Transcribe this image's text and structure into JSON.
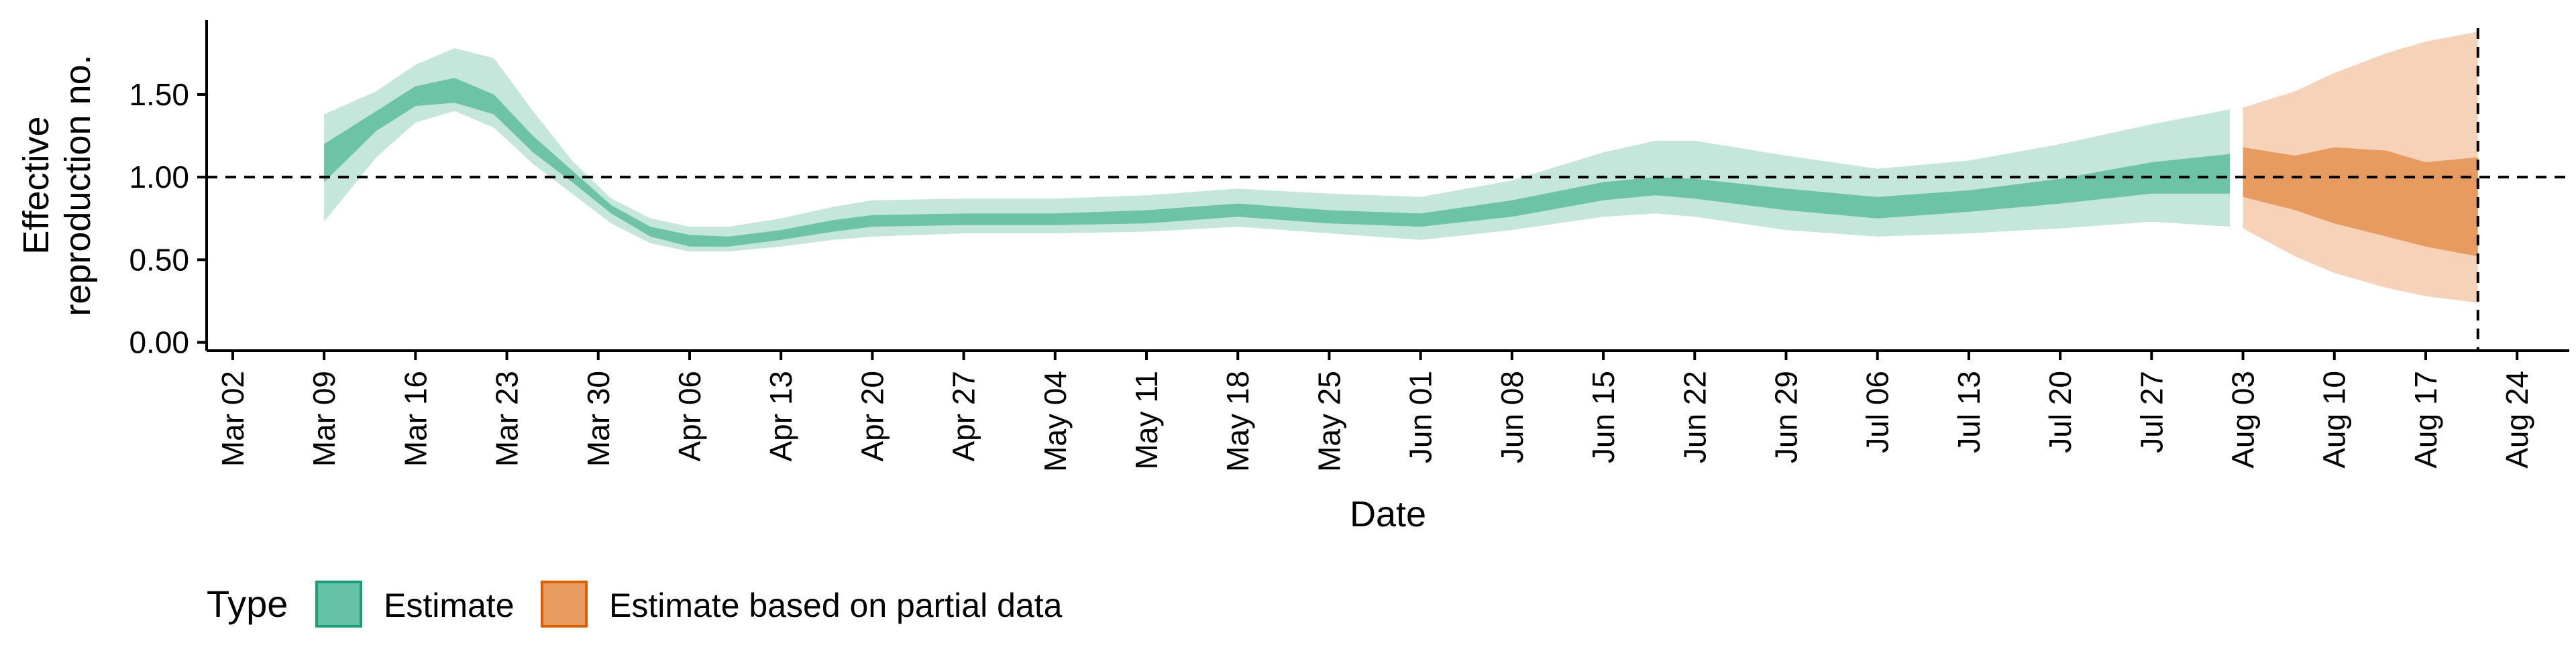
{
  "chart_data": {
    "type": "area",
    "title": "",
    "xlabel": "Date",
    "ylabel": "Effective reproduction no.",
    "ylabel_lines": [
      "Effective",
      "reproduction no."
    ],
    "xlim": [
      "2020-02-29",
      "2020-08-28"
    ],
    "ylim": [
      -0.05,
      1.95
    ],
    "x_tick_labels": [
      "Mar 02",
      "Mar 09",
      "Mar 16",
      "Mar 23",
      "Mar 30",
      "Apr 06",
      "Apr 13",
      "Apr 20",
      "Apr 27",
      "May 04",
      "May 11",
      "May 18",
      "May 25",
      "Jun 01",
      "Jun 08",
      "Jun 15",
      "Jun 22",
      "Jun 29",
      "Jul 06",
      "Jul 13",
      "Jul 20",
      "Jul 27",
      "Aug 03",
      "Aug 10",
      "Aug 17",
      "Aug 24"
    ],
    "x_tick_dates": [
      "2020-03-02",
      "2020-03-09",
      "2020-03-16",
      "2020-03-23",
      "2020-03-30",
      "2020-04-06",
      "2020-04-13",
      "2020-04-20",
      "2020-04-27",
      "2020-05-04",
      "2020-05-11",
      "2020-05-18",
      "2020-05-25",
      "2020-06-01",
      "2020-06-08",
      "2020-06-15",
      "2020-06-22",
      "2020-06-29",
      "2020-07-06",
      "2020-07-13",
      "2020-07-20",
      "2020-07-27",
      "2020-08-03",
      "2020-08-10",
      "2020-08-17",
      "2020-08-24"
    ],
    "y_ticks": [
      0,
      0.5,
      1.0,
      1.5
    ],
    "y_tick_labels": [
      "0.00",
      "0.50",
      "1.00",
      "1.50"
    ],
    "reference_hline": 1.0,
    "reference_vline": "2020-08-21",
    "grid": false,
    "legend": {
      "title": "Type",
      "position": "bottom-left",
      "entries": [
        {
          "label": "Estimate",
          "fill": "#66c2a5",
          "border": "#1b9e77"
        },
        {
          "label": "Estimate based on partial data",
          "fill": "#e89b5e",
          "border": "#d95f02"
        }
      ]
    },
    "colors": {
      "estimate_outer": "#c5e6db",
      "estimate_inner": "#6cc3a6",
      "partial_outer": "#f6d3b8",
      "partial_inner": "#e89b5e"
    },
    "series": [
      {
        "name": "Estimate",
        "points": [
          {
            "x": "2020-03-09",
            "lo90": 0.73,
            "lo50": 0.97,
            "hi50": 1.2,
            "hi90": 1.38
          },
          {
            "x": "2020-03-13",
            "lo90": 1.12,
            "lo50": 1.28,
            "hi50": 1.4,
            "hi90": 1.52
          },
          {
            "x": "2020-03-16",
            "lo90": 1.33,
            "lo50": 1.43,
            "hi50": 1.55,
            "hi90": 1.68
          },
          {
            "x": "2020-03-19",
            "lo90": 1.4,
            "lo50": 1.45,
            "hi50": 1.6,
            "hi90": 1.78
          },
          {
            "x": "2020-03-22",
            "lo90": 1.3,
            "lo50": 1.38,
            "hi50": 1.5,
            "hi90": 1.72
          },
          {
            "x": "2020-03-25",
            "lo90": 1.08,
            "lo50": 1.15,
            "hi50": 1.25,
            "hi90": 1.4
          },
          {
            "x": "2020-03-28",
            "lo90": 0.9,
            "lo50": 0.97,
            "hi50": 1.04,
            "hi90": 1.1
          },
          {
            "x": "2020-03-31",
            "lo90": 0.72,
            "lo50": 0.78,
            "hi50": 0.83,
            "hi90": 0.87
          },
          {
            "x": "2020-04-03",
            "lo90": 0.6,
            "lo50": 0.64,
            "hi50": 0.7,
            "hi90": 0.75
          },
          {
            "x": "2020-04-06",
            "lo90": 0.55,
            "lo50": 0.58,
            "hi50": 0.65,
            "hi90": 0.7
          },
          {
            "x": "2020-04-09",
            "lo90": 0.55,
            "lo50": 0.58,
            "hi50": 0.64,
            "hi90": 0.7
          },
          {
            "x": "2020-04-13",
            "lo90": 0.58,
            "lo50": 0.62,
            "hi50": 0.68,
            "hi90": 0.75
          },
          {
            "x": "2020-04-17",
            "lo90": 0.62,
            "lo50": 0.67,
            "hi50": 0.74,
            "hi90": 0.82
          },
          {
            "x": "2020-04-20",
            "lo90": 0.64,
            "lo50": 0.7,
            "hi50": 0.77,
            "hi90": 0.86
          },
          {
            "x": "2020-04-27",
            "lo90": 0.66,
            "lo50": 0.71,
            "hi50": 0.78,
            "hi90": 0.87
          },
          {
            "x": "2020-05-04",
            "lo90": 0.66,
            "lo50": 0.71,
            "hi50": 0.78,
            "hi90": 0.87
          },
          {
            "x": "2020-05-11",
            "lo90": 0.67,
            "lo50": 0.72,
            "hi50": 0.8,
            "hi90": 0.89
          },
          {
            "x": "2020-05-18",
            "lo90": 0.7,
            "lo50": 0.76,
            "hi50": 0.84,
            "hi90": 0.93
          },
          {
            "x": "2020-05-25",
            "lo90": 0.66,
            "lo50": 0.72,
            "hi50": 0.8,
            "hi90": 0.9
          },
          {
            "x": "2020-06-01",
            "lo90": 0.62,
            "lo50": 0.7,
            "hi50": 0.78,
            "hi90": 0.88
          },
          {
            "x": "2020-06-08",
            "lo90": 0.68,
            "lo50": 0.76,
            "hi50": 0.86,
            "hi90": 0.98
          },
          {
            "x": "2020-06-15",
            "lo90": 0.76,
            "lo50": 0.86,
            "hi50": 0.97,
            "hi90": 1.15
          },
          {
            "x": "2020-06-19",
            "lo90": 0.78,
            "lo50": 0.89,
            "hi50": 1.0,
            "hi90": 1.22
          },
          {
            "x": "2020-06-22",
            "lo90": 0.76,
            "lo50": 0.87,
            "hi50": 0.99,
            "hi90": 1.22
          },
          {
            "x": "2020-06-29",
            "lo90": 0.68,
            "lo50": 0.8,
            "hi50": 0.93,
            "hi90": 1.13
          },
          {
            "x": "2020-07-06",
            "lo90": 0.64,
            "lo50": 0.75,
            "hi50": 0.88,
            "hi90": 1.05
          },
          {
            "x": "2020-07-13",
            "lo90": 0.66,
            "lo50": 0.79,
            "hi50": 0.92,
            "hi90": 1.1
          },
          {
            "x": "2020-07-20",
            "lo90": 0.69,
            "lo50": 0.84,
            "hi50": 0.99,
            "hi90": 1.2
          },
          {
            "x": "2020-07-27",
            "lo90": 0.73,
            "lo50": 0.9,
            "hi50": 1.09,
            "hi90": 1.32
          },
          {
            "x": "2020-08-02",
            "lo90": 0.7,
            "lo50": 0.9,
            "hi50": 1.14,
            "hi90": 1.41
          }
        ]
      },
      {
        "name": "Estimate based on partial data",
        "points": [
          {
            "x": "2020-08-03",
            "lo90": 0.69,
            "lo50": 0.88,
            "hi50": 1.18,
            "hi90": 1.42
          },
          {
            "x": "2020-08-07",
            "lo90": 0.52,
            "lo50": 0.8,
            "hi50": 1.13,
            "hi90": 1.52
          },
          {
            "x": "2020-08-10",
            "lo90": 0.42,
            "lo50": 0.72,
            "hi50": 1.18,
            "hi90": 1.63
          },
          {
            "x": "2020-08-14",
            "lo90": 0.33,
            "lo50": 0.64,
            "hi50": 1.16,
            "hi90": 1.75
          },
          {
            "x": "2020-08-17",
            "lo90": 0.28,
            "lo50": 0.58,
            "hi50": 1.09,
            "hi90": 1.82
          },
          {
            "x": "2020-08-21",
            "lo90": 0.24,
            "lo50": 0.52,
            "hi50": 1.12,
            "hi90": 1.88
          }
        ]
      }
    ]
  }
}
